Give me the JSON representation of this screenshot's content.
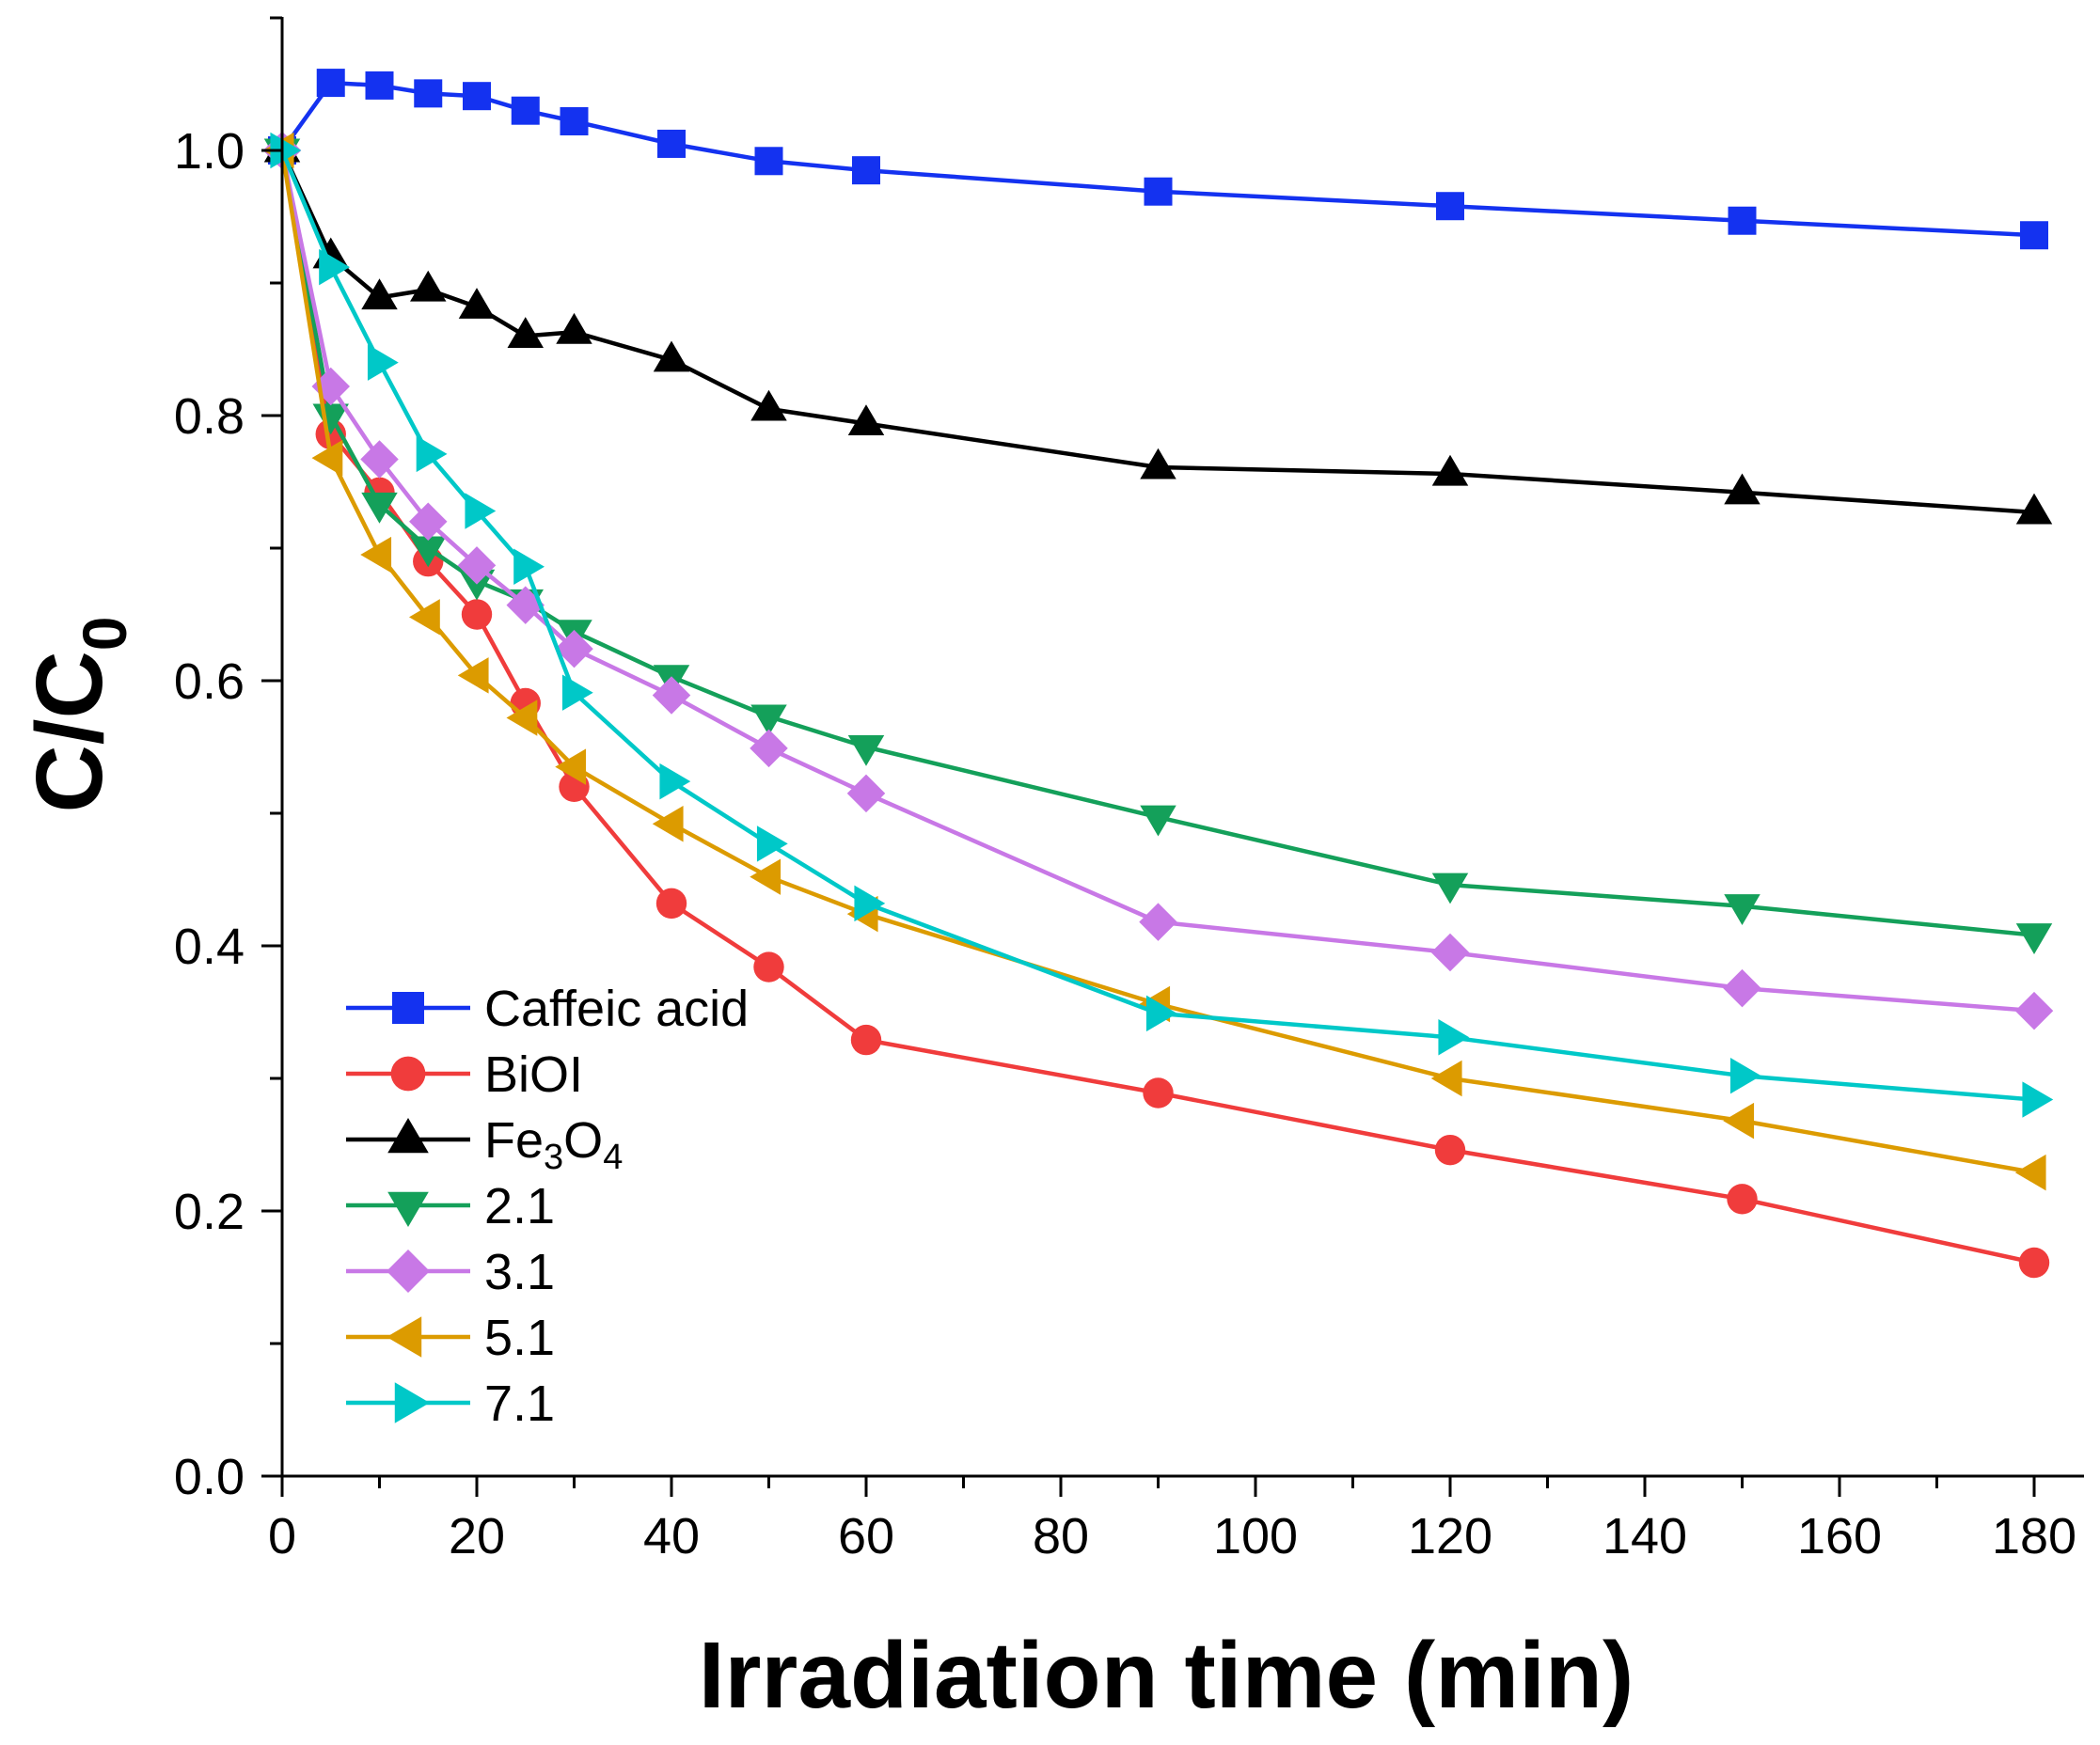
{
  "chart_data": {
    "type": "line",
    "title": "",
    "xlabel": "Irradiation time (min)",
    "ylabel": {
      "base": "C/C",
      "sub": "0"
    },
    "xlim": [
      0,
      185
    ],
    "ylim": [
      0,
      1.1
    ],
    "xticks": [
      0,
      20,
      40,
      60,
      80,
      100,
      120,
      140,
      160,
      180
    ],
    "xtick_labels": [
      "0",
      "20",
      "40",
      "60",
      "80",
      "100",
      "120",
      "140",
      "160",
      "180"
    ],
    "yticks": [
      0.0,
      0.2,
      0.4,
      0.6,
      0.8,
      1.0
    ],
    "ytick_labels": [
      "0.0",
      "0.2",
      "0.4",
      "0.6",
      "0.8",
      "1.0"
    ],
    "legend_position": "bottom-left",
    "grid": false,
    "x": [
      0,
      5,
      10,
      15,
      20,
      25,
      30,
      40,
      50,
      60,
      90,
      120,
      150,
      180
    ],
    "series": [
      {
        "name": "Caffeic acid",
        "label_parts": [
          [
            "Caffeic acid",
            false
          ]
        ],
        "marker": "square",
        "color": "#1432F0",
        "values": [
          1.0,
          1.051,
          1.049,
          1.043,
          1.041,
          1.03,
          1.022,
          1.005,
          0.992,
          0.985,
          0.969,
          0.958,
          0.947,
          0.936
        ]
      },
      {
        "name": "BiOI",
        "label_parts": [
          [
            "BiOI",
            false
          ]
        ],
        "marker": "circle",
        "color": "#F03C3C",
        "values": [
          1.0,
          0.786,
          0.742,
          0.69,
          0.65,
          0.583,
          0.52,
          0.432,
          0.384,
          0.329,
          0.289,
          0.246,
          0.209,
          0.161
        ]
      },
      {
        "name": "Fe3O4",
        "label_parts": [
          [
            "Fe",
            false
          ],
          [
            "3",
            true
          ],
          [
            "O",
            false
          ],
          [
            "4",
            true
          ]
        ],
        "marker": "triangle-up",
        "color": "#000000",
        "values": [
          1.0,
          0.92,
          0.889,
          0.895,
          0.882,
          0.86,
          0.863,
          0.842,
          0.805,
          0.794,
          0.761,
          0.756,
          0.742,
          0.727
        ]
      },
      {
        "name": "2.1",
        "label_parts": [
          [
            "2.1",
            false
          ]
        ],
        "marker": "triangle-down",
        "color": "#14A05A",
        "values": [
          1.0,
          0.8,
          0.733,
          0.7,
          0.675,
          0.66,
          0.637,
          0.603,
          0.573,
          0.55,
          0.497,
          0.446,
          0.43,
          0.408
        ]
      },
      {
        "name": "3.1",
        "label_parts": [
          [
            "3.1",
            false
          ]
        ],
        "marker": "diamond",
        "color": "#C878E6",
        "values": [
          1.0,
          0.822,
          0.767,
          0.72,
          0.687,
          0.657,
          0.624,
          0.589,
          0.549,
          0.515,
          0.418,
          0.395,
          0.368,
          0.351
        ]
      },
      {
        "name": "5.1",
        "label_parts": [
          [
            "5.1",
            false
          ]
        ],
        "marker": "triangle-left",
        "color": "#DC9B00",
        "values": [
          1.0,
          0.768,
          0.695,
          0.648,
          0.604,
          0.572,
          0.535,
          0.492,
          0.452,
          0.424,
          0.356,
          0.3,
          0.268,
          0.229
        ]
      },
      {
        "name": "7.1",
        "label_parts": [
          [
            "7.1",
            false
          ]
        ],
        "marker": "triangle-right",
        "color": "#00C8C8",
        "values": [
          1.0,
          0.912,
          0.84,
          0.771,
          0.728,
          0.686,
          0.591,
          0.524,
          0.477,
          0.432,
          0.349,
          0.331,
          0.302,
          0.284
        ]
      }
    ]
  }
}
